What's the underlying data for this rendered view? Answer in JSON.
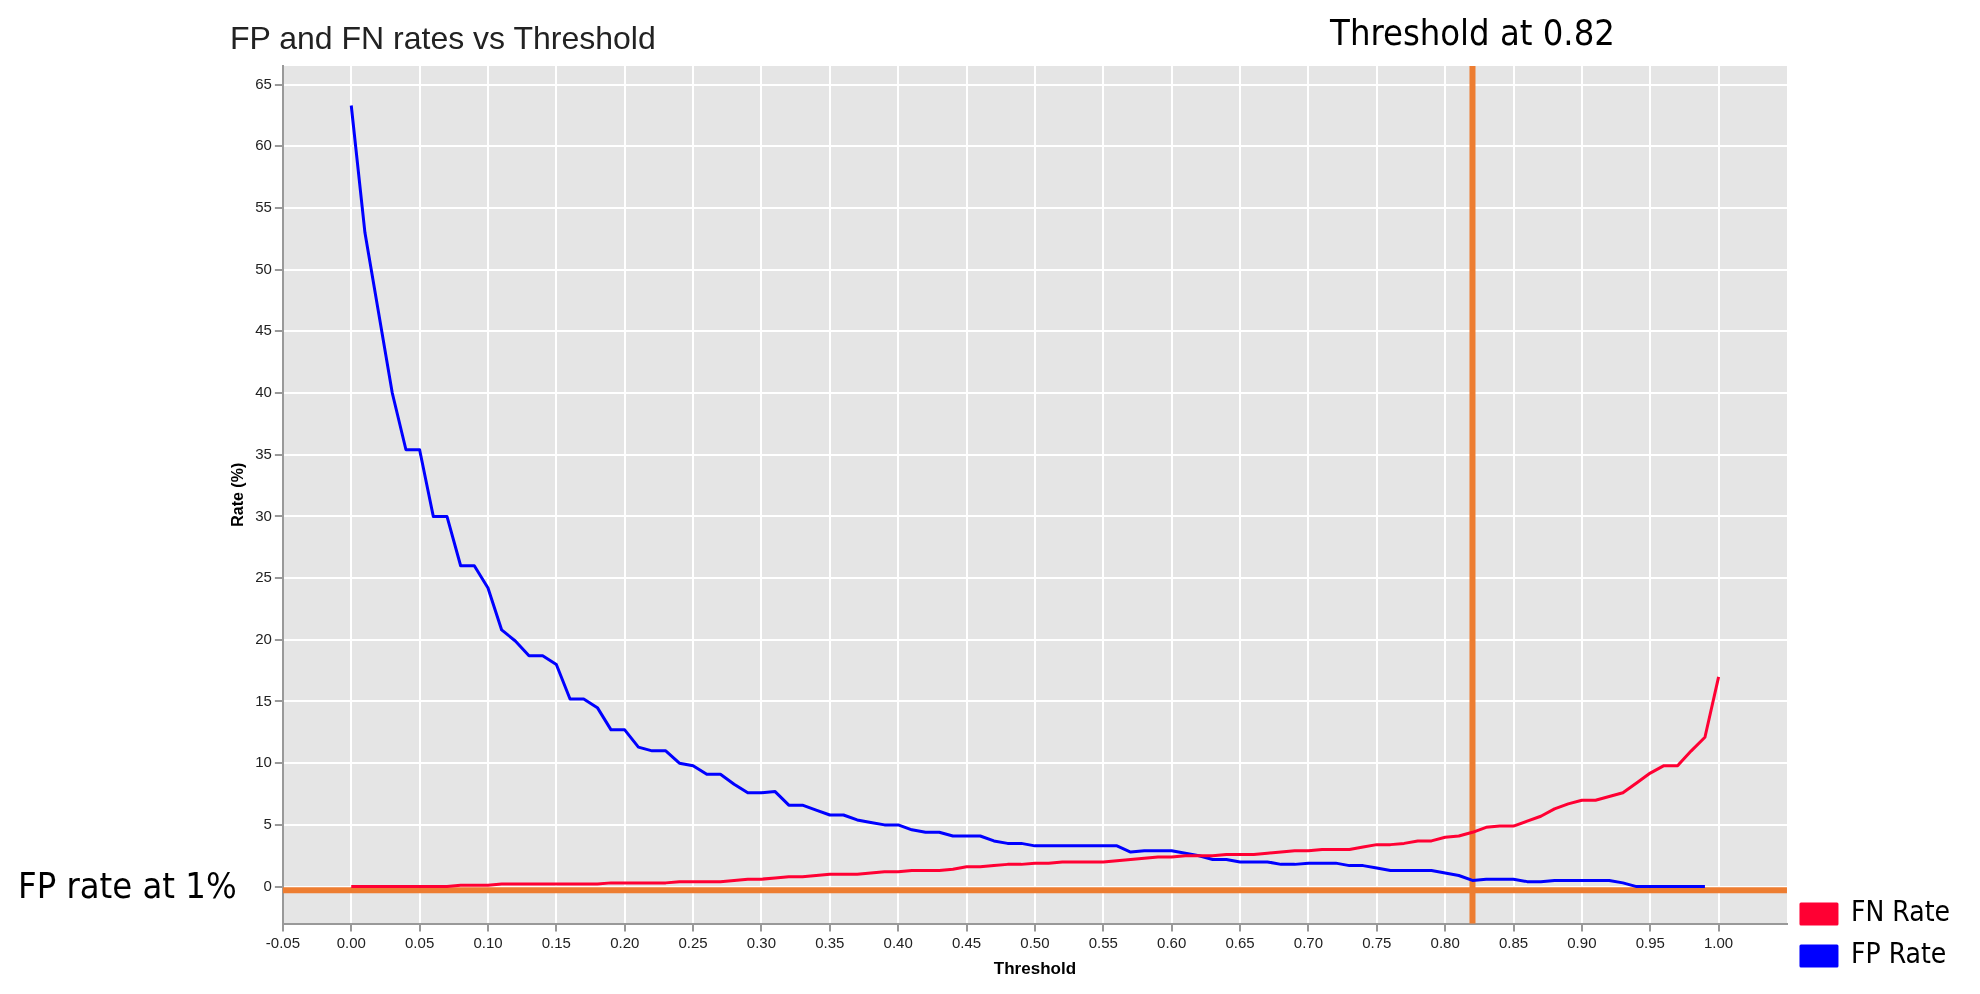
{
  "chart_data": {
    "type": "line",
    "title": "FP and FN rates vs Threshold",
    "xlabel": "Threshold",
    "ylabel": "Rate (%)",
    "xlim": [
      -0.05,
      1.05
    ],
    "xticks": [
      {
        "value": -0.05,
        "label": "-0.05"
      },
      {
        "value": 0,
        "label": "0.00"
      },
      {
        "value": 0.05,
        "label": "0.05"
      },
      {
        "value": 0.1,
        "label": "0.10"
      },
      {
        "value": 0.15,
        "label": "0.15"
      },
      {
        "value": 0.2,
        "label": "0.20"
      },
      {
        "value": 0.25,
        "label": "0.25"
      },
      {
        "value": 0.3,
        "label": "0.30"
      },
      {
        "value": 0.35,
        "label": "0.35"
      },
      {
        "value": 0.4,
        "label": "0.40"
      },
      {
        "value": 0.45,
        "label": "0.45"
      },
      {
        "value": 0.5,
        "label": "0.50"
      },
      {
        "value": 0.55,
        "label": "0.55"
      },
      {
        "value": 0.6,
        "label": "0.60"
      },
      {
        "value": 0.65,
        "label": "0.65"
      },
      {
        "value": 0.7,
        "label": "0.70"
      },
      {
        "value": 0.75,
        "label": "0.75"
      },
      {
        "value": 0.8,
        "label": "0.80"
      },
      {
        "value": 0.85,
        "label": "0.85"
      },
      {
        "value": 0.9,
        "label": "0.90"
      },
      {
        "value": 0.95,
        "label": "0.95"
      },
      {
        "value": 1,
        "label": "1.00"
      }
    ],
    "ylim": [
      -3,
      66.5
    ],
    "yticks": [
      0,
      5,
      10,
      15,
      20,
      25,
      30,
      35,
      40,
      45,
      50,
      55,
      60,
      65
    ],
    "grid": true,
    "legend": "bottom right",
    "marker": "none",
    "line_style": "solid",
    "series": [
      {
        "name": "FN Rate",
        "color": "#ff0033",
        "x": [
          0,
          0.01,
          0.02,
          0.03,
          0.04,
          0.05,
          0.06,
          0.07,
          0.08,
          0.09,
          0.1,
          0.11,
          0.12,
          0.13,
          0.14,
          0.15,
          0.16,
          0.17,
          0.18,
          0.19,
          0.2,
          0.21,
          0.22,
          0.23,
          0.24,
          0.25,
          0.26,
          0.27,
          0.28,
          0.29,
          0.3,
          0.31,
          0.32,
          0.33,
          0.34,
          0.35,
          0.36,
          0.37,
          0.38,
          0.39,
          0.4,
          0.41,
          0.42,
          0.43,
          0.44,
          0.45,
          0.46,
          0.47,
          0.48,
          0.49,
          0.5,
          0.51,
          0.52,
          0.53,
          0.54,
          0.55,
          0.56,
          0.57,
          0.58,
          0.59,
          0.6,
          0.61,
          0.62,
          0.63,
          0.64,
          0.65,
          0.66,
          0.67,
          0.68,
          0.69,
          0.7,
          0.71,
          0.72,
          0.73,
          0.74,
          0.75,
          0.76,
          0.77,
          0.78,
          0.79,
          0.8,
          0.81,
          0.82,
          0.83,
          0.84,
          0.85,
          0.86,
          0.87,
          0.88,
          0.89,
          0.9,
          0.91,
          0.92,
          0.93,
          0.94,
          0.95,
          0.96,
          0.97,
          0.98,
          0.99,
          1
        ],
        "values": [
          0,
          0,
          0,
          0,
          0,
          0,
          0,
          0,
          0.1,
          0.1,
          0.1,
          0.2,
          0.2,
          0.2,
          0.2,
          0.2,
          0.2,
          0.2,
          0.2,
          0.3,
          0.3,
          0.3,
          0.3,
          0.3,
          0.4,
          0.4,
          0.4,
          0.4,
          0.5,
          0.6,
          0.6,
          0.7,
          0.8,
          0.8,
          0.9,
          1,
          1,
          1,
          1.1,
          1.2,
          1.2,
          1.3,
          1.3,
          1.3,
          1.4,
          1.6,
          1.6,
          1.7,
          1.8,
          1.8,
          1.9,
          1.9,
          2,
          2,
          2,
          2,
          2.1,
          2.2,
          2.3,
          2.4,
          2.4,
          2.5,
          2.5,
          2.5,
          2.6,
          2.6,
          2.6,
          2.7,
          2.8,
          2.9,
          2.9,
          3,
          3,
          3,
          3.2,
          3.4,
          3.4,
          3.5,
          3.7,
          3.7,
          4,
          4.1,
          4.4,
          4.8,
          4.9,
          4.9,
          5.3,
          5.7,
          6.3,
          6.7,
          7,
          7,
          7.3,
          7.6,
          8.4,
          9.2,
          9.8,
          9.8,
          11,
          12.1,
          17
        ]
      },
      {
        "name": "FP Rate",
        "color": "#0000ff",
        "x": [
          0,
          0.01,
          0.02,
          0.03,
          0.04,
          0.05,
          0.06,
          0.07,
          0.08,
          0.09,
          0.1,
          0.11,
          0.12,
          0.13,
          0.14,
          0.15,
          0.16,
          0.17,
          0.18,
          0.19,
          0.2,
          0.21,
          0.22,
          0.23,
          0.24,
          0.25,
          0.26,
          0.27,
          0.28,
          0.29,
          0.3,
          0.31,
          0.32,
          0.33,
          0.34,
          0.35,
          0.36,
          0.37,
          0.38,
          0.39,
          0.4,
          0.41,
          0.42,
          0.43,
          0.44,
          0.45,
          0.46,
          0.47,
          0.48,
          0.49,
          0.5,
          0.51,
          0.52,
          0.53,
          0.54,
          0.55,
          0.56,
          0.57,
          0.58,
          0.59,
          0.6,
          0.61,
          0.62,
          0.63,
          0.64,
          0.65,
          0.66,
          0.67,
          0.68,
          0.69,
          0.7,
          0.71,
          0.72,
          0.73,
          0.74,
          0.75,
          0.76,
          0.77,
          0.78,
          0.79,
          0.8,
          0.81,
          0.82,
          0.83,
          0.84,
          0.85,
          0.86,
          0.87,
          0.88,
          0.89,
          0.9,
          0.91,
          0.92,
          0.93,
          0.94,
          0.95,
          0.96,
          0.97,
          0.98,
          0.99
        ],
        "values": [
          63.3,
          53,
          46.5,
          40,
          35.4,
          35.4,
          30,
          30,
          26,
          26,
          24.2,
          20.8,
          19.9,
          18.7,
          18.7,
          18,
          15.2,
          15.2,
          14.5,
          12.7,
          12.7,
          11.3,
          11,
          11,
          10,
          9.8,
          9.1,
          9.1,
          8.3,
          7.6,
          7.6,
          7.7,
          6.6,
          6.6,
          6.2,
          5.8,
          5.8,
          5.4,
          5.2,
          5,
          5,
          4.6,
          4.4,
          4.4,
          4.1,
          4.1,
          4.1,
          3.7,
          3.5,
          3.5,
          3.3,
          3.3,
          3.3,
          3.3,
          3.3,
          3.3,
          3.3,
          2.8,
          2.9,
          2.9,
          2.9,
          2.7,
          2.5,
          2.2,
          2.2,
          2,
          2,
          2,
          1.8,
          1.8,
          1.9,
          1.9,
          1.9,
          1.7,
          1.7,
          1.5,
          1.3,
          1.3,
          1.3,
          1.3,
          1.1,
          0.9,
          0.5,
          0.6,
          0.6,
          0.6,
          0.4,
          0.4,
          0.5,
          0.5,
          0.5,
          0.5,
          0.5,
          0.3,
          0,
          0,
          0,
          0,
          0,
          0
        ]
      }
    ],
    "ref_lines": [
      {
        "axis": "x",
        "value": 0.82,
        "label": "Threshold at 0.82",
        "color": "#ed7d31"
      },
      {
        "axis": "y",
        "value": -0.3,
        "label": "FP rate at 1%",
        "color": "#ed7d31"
      }
    ]
  }
}
